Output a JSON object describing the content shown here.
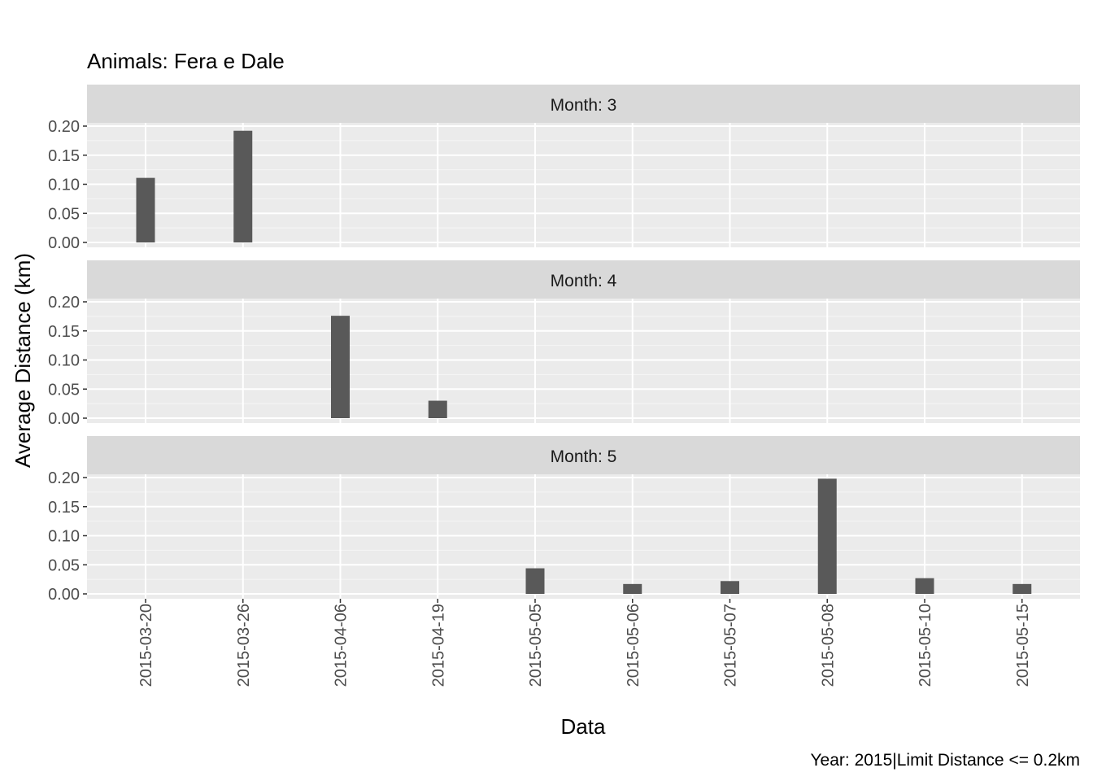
{
  "chart_data": {
    "type": "bar",
    "title": "Animals: Fera e Dale",
    "xlabel": "Data",
    "ylabel": "Average Distance (km)",
    "caption": "Year: 2015|Limit Distance <= 0.2km",
    "categories": [
      "2015-03-20",
      "2015-03-26",
      "2015-04-06",
      "2015-04-19",
      "2015-05-05",
      "2015-05-06",
      "2015-05-07",
      "2015-05-08",
      "2015-05-10",
      "2015-05-15"
    ],
    "ylim": [
      0,
      0.2
    ],
    "yticks": [
      "0.00",
      "0.05",
      "0.10",
      "0.15",
      "0.20"
    ],
    "grid": true,
    "facets": [
      {
        "label": "Month: 3",
        "values": {
          "2015-03-20": 0.111,
          "2015-03-26": 0.192
        }
      },
      {
        "label": "Month: 4",
        "values": {
          "2015-04-06": 0.176,
          "2015-04-19": 0.03
        }
      },
      {
        "label": "Month: 5",
        "values": {
          "2015-05-05": 0.044,
          "2015-05-06": 0.017,
          "2015-05-07": 0.022,
          "2015-05-08": 0.198,
          "2015-05-10": 0.027,
          "2015-05-15": 0.017
        }
      }
    ],
    "colors": {
      "bar": "#595959",
      "panel": "#ebebeb",
      "strip": "#d9d9d9",
      "grid": "#ffffff"
    }
  }
}
